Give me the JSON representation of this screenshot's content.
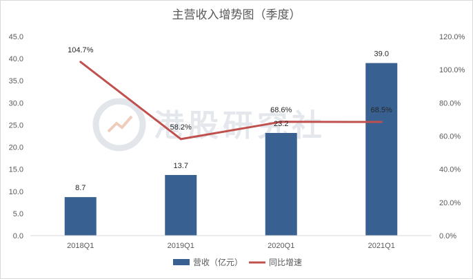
{
  "chart_data": {
    "type": "bar",
    "title": "主营收入增势图（季度）",
    "categories": [
      "2018Q1",
      "2019Q1",
      "2020Q1",
      "2021Q1"
    ],
    "series": [
      {
        "name": "营收（亿元）",
        "kind": "bar",
        "axis": "left",
        "color": "#386192",
        "values": [
          8.7,
          13.7,
          23.2,
          39.0
        ],
        "labels": [
          "8.7",
          "13.7",
          "23.2",
          "39.0"
        ]
      },
      {
        "name": "同比增速",
        "kind": "line",
        "axis": "right",
        "color": "#c0504d",
        "values": [
          104.7,
          58.2,
          68.6,
          68.5
        ],
        "labels": [
          "104.7%",
          "58.2%",
          "68.6%",
          "68.5%"
        ]
      }
    ],
    "y_left": {
      "ylim": [
        0,
        45
      ],
      "ticks": [
        "0.0",
        "5.0",
        "10.0",
        "15.0",
        "20.0",
        "25.0",
        "30.0",
        "35.0",
        "40.0",
        "45.0"
      ]
    },
    "y_right": {
      "ylim": [
        0,
        120
      ],
      "ticks": [
        "0.0%",
        "20.0%",
        "40.0%",
        "60.0%",
        "80.0%",
        "100.0%",
        "120.0%"
      ]
    },
    "grid": false,
    "legend": "bottom"
  },
  "watermark": {
    "text": "港股研究社"
  }
}
